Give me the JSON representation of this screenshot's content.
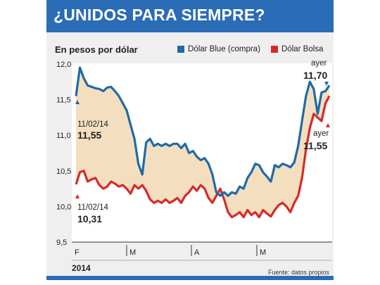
{
  "header": {
    "title": "¿UNIDOS PARA SIEMPRE?"
  },
  "subtitle": "En pesos por dólar",
  "legend": [
    {
      "label": "Dólar Blue (compra)",
      "color": "#1f6aa8"
    },
    {
      "label": "Dólar Bolsa",
      "color": "#d62a2a"
    }
  ],
  "footer": {
    "year": "2014",
    "source": "Fuente: datos propios"
  },
  "colors": {
    "brand": "#2a6cb5",
    "fill": "#f3dfbf",
    "blue": "#1f6aa8",
    "red": "#d62a2a"
  },
  "chart_data": {
    "type": "line",
    "ylim": [
      9.5,
      12.0
    ],
    "yticks": [
      "12,0",
      "11,5",
      "11,0",
      "10,5",
      "10,0",
      "9,5"
    ],
    "xticks": [
      "F",
      "M",
      "A",
      "M"
    ],
    "grid": false,
    "legend_position": "top",
    "series": [
      {
        "name": "Dólar Blue (compra)",
        "values": [
          11.55,
          11.95,
          11.8,
          11.7,
          11.68,
          11.66,
          11.65,
          11.62,
          11.67,
          11.68,
          11.62,
          11.55,
          11.45,
          11.35,
          11.15,
          10.95,
          10.6,
          10.45,
          10.9,
          10.95,
          10.85,
          10.88,
          10.85,
          10.88,
          10.85,
          10.88,
          10.88,
          10.82,
          10.88,
          10.75,
          10.78,
          10.7,
          10.65,
          10.68,
          10.6,
          10.45,
          10.2,
          10.15,
          10.2,
          10.15,
          10.2,
          10.18,
          10.28,
          10.25,
          10.4,
          10.48,
          10.6,
          10.58,
          10.48,
          10.42,
          10.35,
          10.58,
          10.55,
          10.6,
          10.58,
          10.55,
          10.62,
          10.85,
          11.2,
          11.55,
          11.75,
          11.65,
          11.3,
          11.6,
          11.62,
          11.7
        ]
      },
      {
        "name": "Dólar Bolsa",
        "values": [
          10.31,
          10.48,
          10.5,
          10.35,
          10.38,
          10.4,
          10.3,
          10.25,
          10.28,
          10.35,
          10.32,
          10.28,
          10.3,
          10.25,
          10.18,
          10.3,
          10.25,
          10.3,
          10.22,
          10.1,
          10.05,
          10.08,
          10.05,
          10.1,
          10.05,
          10.08,
          10.12,
          10.05,
          10.15,
          10.2,
          10.28,
          10.22,
          10.3,
          10.25,
          10.12,
          10.05,
          10.15,
          10.25,
          10.1,
          9.92,
          9.85,
          9.88,
          9.92,
          9.85,
          9.95,
          9.88,
          9.92,
          9.85,
          9.95,
          9.9,
          9.86,
          9.95,
          10.02,
          10.05,
          10.0,
          9.92,
          10.05,
          10.15,
          10.4,
          10.8,
          11.1,
          11.3,
          11.25,
          11.2,
          11.45,
          11.55
        ]
      }
    ],
    "annotations": [
      {
        "label": "11/02/14",
        "value": "11,55"
      },
      {
        "label": "11/02/14",
        "value": "10,31"
      },
      {
        "label": "ayer",
        "value": "11,70"
      },
      {
        "label": "ayer",
        "value": "11,55"
      }
    ]
  }
}
